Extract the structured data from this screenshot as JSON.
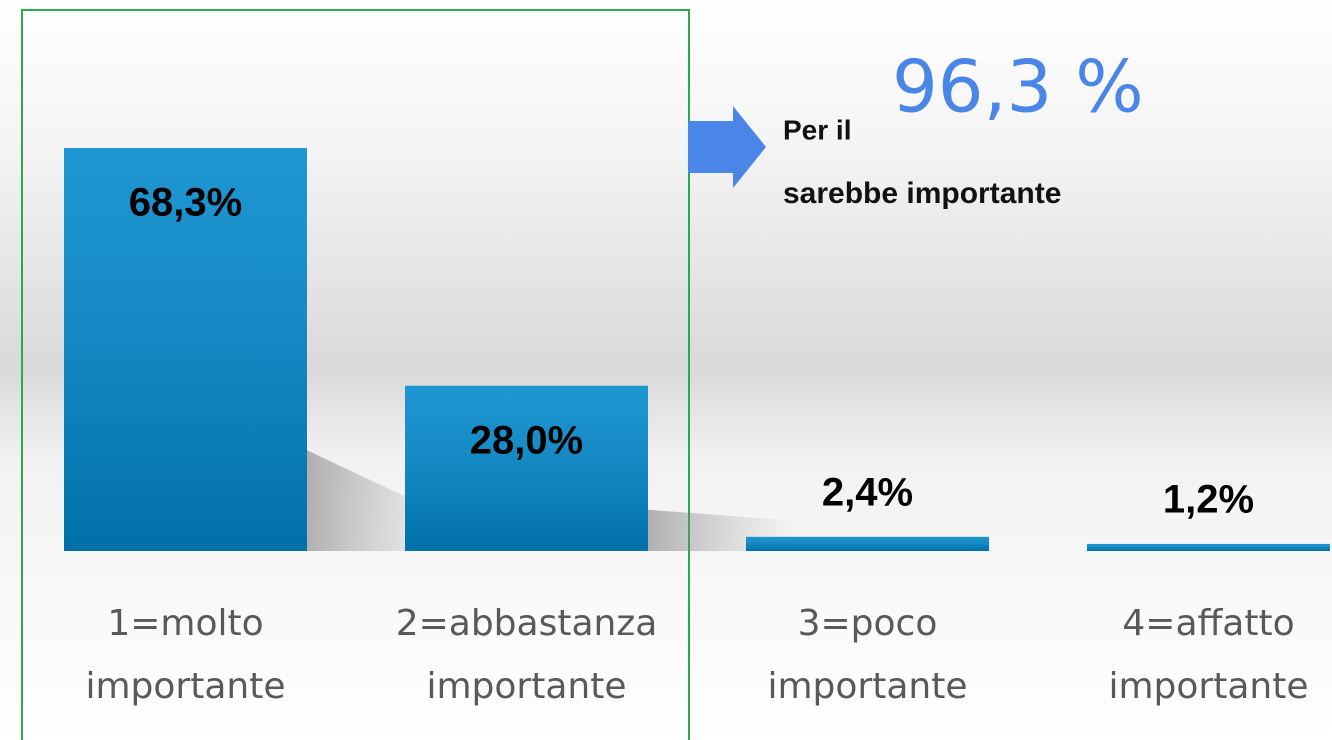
{
  "chart_data": {
    "type": "bar",
    "categories": [
      "1=molto importante",
      "2=abbastanza importante",
      "3=poco importante",
      "4=affatto importante"
    ],
    "values": [
      68.3,
      28.0,
      2.4,
      1.2
    ],
    "value_labels": [
      "68,3%",
      "28,0%",
      "2,4%",
      "1,2%"
    ],
    "color": "#0088cc",
    "ylim": [
      0,
      70
    ],
    "annotation": {
      "prefix": "Per il",
      "highlight": "96,3 %",
      "suffix": "sarebbe importante",
      "color": "#4a86e8"
    }
  }
}
